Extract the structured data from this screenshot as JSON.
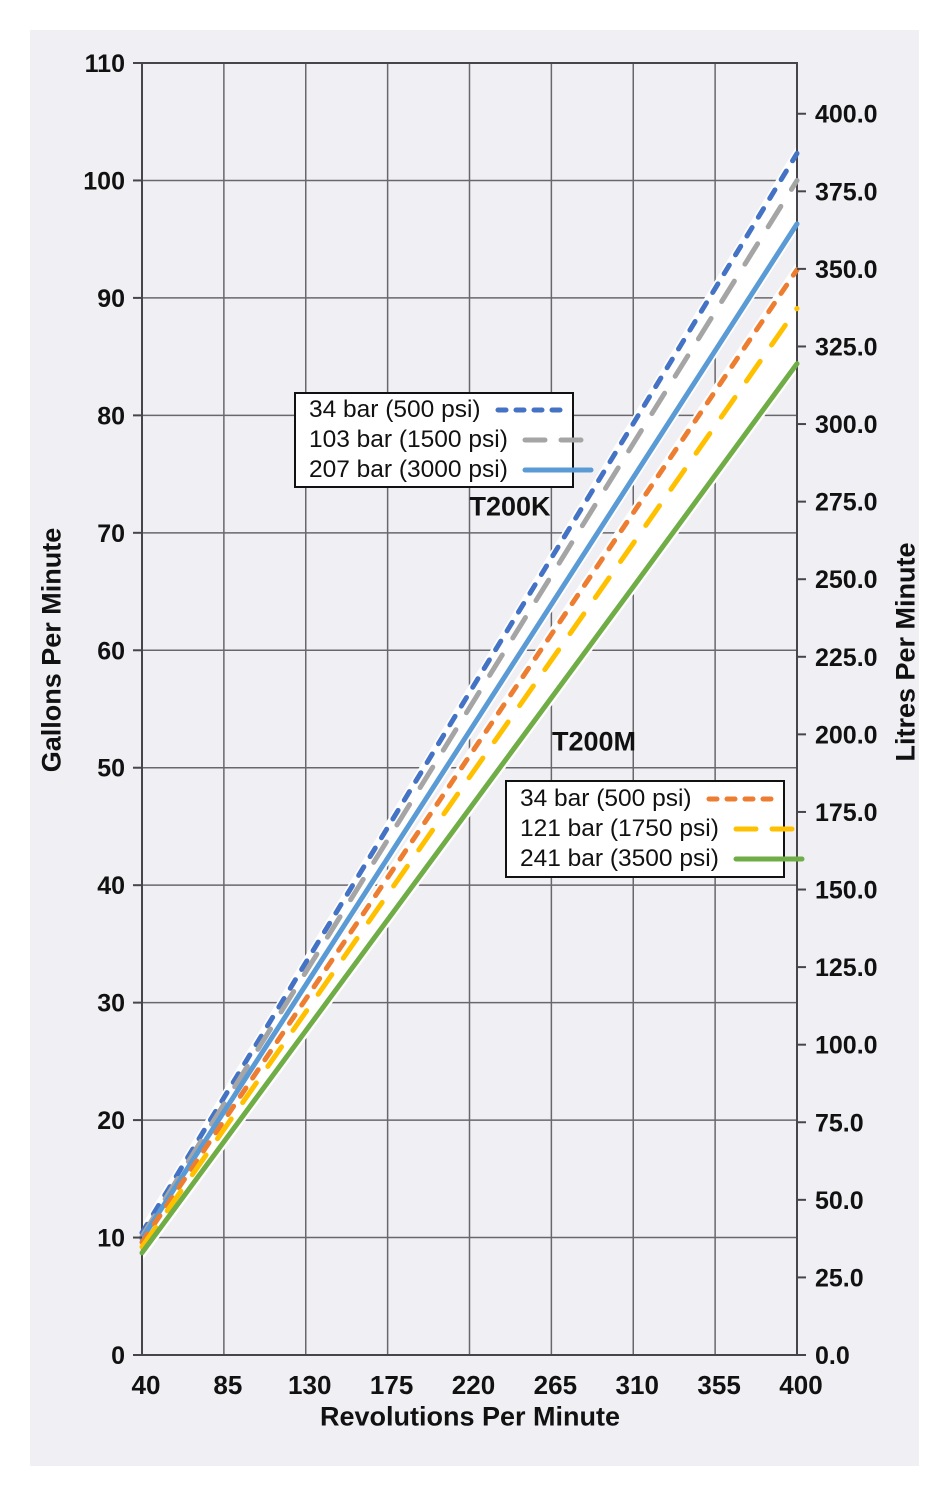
{
  "chart_data": {
    "type": "line",
    "title": "",
    "xlabel": "Revolutions Per Minute",
    "ylabel_left": "Gallons Per Minute",
    "ylabel_right": "Litres Per Minute",
    "x_range": [
      40,
      400
    ],
    "x_ticks": [
      40,
      85,
      130,
      175,
      220,
      265,
      310,
      355,
      400
    ],
    "y_left_range": [
      0,
      110
    ],
    "y_left_ticks": [
      0,
      10,
      20,
      30,
      40,
      50,
      60,
      70,
      80,
      90,
      100,
      110
    ],
    "y_right_ticks": [
      0,
      25,
      50,
      75,
      100,
      125,
      150,
      175,
      200,
      225,
      250,
      275,
      300,
      325,
      350,
      375,
      400
    ],
    "litres_per_gallon": 3.785,
    "grid": true,
    "legend_positions": [
      "upper-left",
      "middle-right"
    ],
    "colors": {
      "background": "#f0f0f4",
      "grid": "#67676c",
      "axis": "#46464a",
      "band": "#ffffff"
    },
    "x": [
      40,
      130,
      220,
      310,
      400
    ],
    "groups": [
      {
        "name": "T200K"
      },
      {
        "name": "T200M"
      }
    ],
    "series": [
      {
        "group": "T200K",
        "name": "34 bar (500 psi)",
        "color": "#4472C4",
        "dash": "short",
        "gpm": [
          10.4,
          33.4,
          56.4,
          79.3,
          102.3
        ]
      },
      {
        "group": "T200K",
        "name": "103 bar (1500 psi)",
        "color": "#A5A5A5",
        "dash": "long",
        "gpm": [
          10.1,
          32.6,
          55.1,
          77.6,
          100.0
        ]
      },
      {
        "group": "T200K",
        "name": "207 bar (3000 psi)",
        "color": "#5B9BD5",
        "dash": "solid",
        "gpm": [
          9.9,
          31.5,
          53.1,
          74.7,
          96.3
        ]
      },
      {
        "group": "T200M",
        "name": "34 bar (500 psi)",
        "color": "#ED7D31",
        "dash": "short",
        "gpm": [
          9.6,
          30.3,
          51.0,
          71.7,
          92.4
        ]
      },
      {
        "group": "T200M",
        "name": "121 bar (1750 psi)",
        "color": "#FFC000",
        "dash": "long",
        "gpm": [
          9.2,
          29.2,
          49.2,
          69.1,
          89.1
        ]
      },
      {
        "group": "T200M",
        "name": "241 bar (3500 psi)",
        "color": "#70AD47",
        "dash": "solid",
        "gpm": [
          8.7,
          27.6,
          46.5,
          65.4,
          84.4
        ]
      }
    ]
  }
}
